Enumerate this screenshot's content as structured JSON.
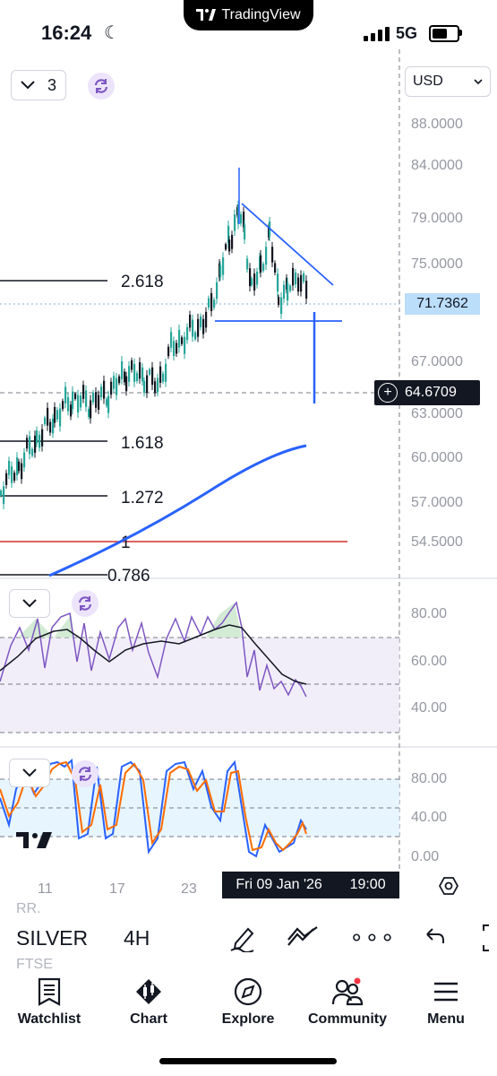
{
  "status": {
    "time": "16:24",
    "app_pill": "TradingView",
    "network": "5G"
  },
  "chart": {
    "series_count": "3",
    "currency": "USD",
    "price_axis": [
      "88.0000",
      "84.0000",
      "79.0000",
      "75.0000",
      "67.0000",
      "63.0000",
      "60.0000",
      "57.0000",
      "54.5000"
    ],
    "last_price": "71.7362",
    "crosshair_price": "64.6709",
    "fib_labels": [
      "2.618",
      "1.618",
      "1.272",
      "1",
      "0.786"
    ],
    "time_axis": [
      "11",
      "17",
      "23"
    ],
    "crosshair_time": "Fri 09 Jan '26",
    "crosshair_hour": "19:00"
  },
  "rsi": {
    "axis": [
      "80.00",
      "60.00",
      "40.00"
    ]
  },
  "stoch": {
    "axis": [
      "80.00",
      "40.00",
      "0.00"
    ]
  },
  "toolbar": {
    "symbol": "SILVER",
    "interval": "4H",
    "ghost_top": "RR.",
    "ghost_bottom": "FTSE"
  },
  "nav": {
    "watchlist": "Watchlist",
    "chart": "Chart",
    "explore": "Explore",
    "community": "Community",
    "menu": "Menu"
  },
  "colors": {
    "accent_blue": "#2962ff",
    "candle_up": "#26a69a",
    "rsi_purple": "#7e57c2",
    "stoch_blue": "#2962ff",
    "stoch_orange": "#ff6d00",
    "fib_red": "#d32f2f"
  }
}
